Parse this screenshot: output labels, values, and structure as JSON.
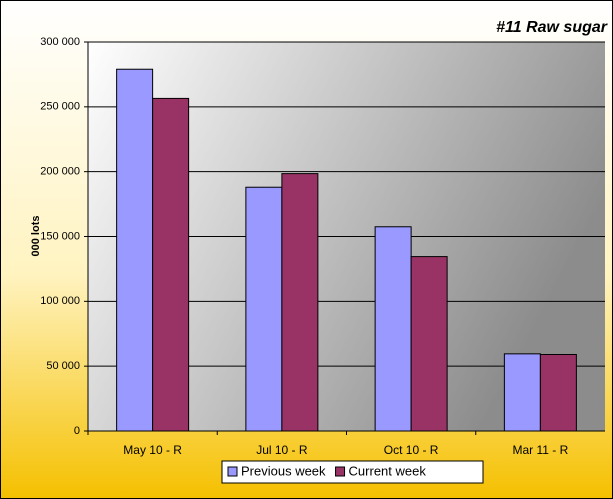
{
  "chart_data": {
    "type": "bar",
    "title": "#11 Raw sugar",
    "y_label": "000 lots",
    "categories": [
      "May 10 - R",
      "Jul 10 - R",
      "Oct 10 - R",
      "Mar 11 - R"
    ],
    "series": [
      {
        "name": "Previous week",
        "color": "#9999ff",
        "values": [
          279000,
          188000,
          157500,
          59500
        ]
      },
      {
        "name": "Current week",
        "color": "#993366",
        "values": [
          256500,
          198500,
          134500,
          59000
        ]
      }
    ],
    "ylim": [
      0,
      300000
    ],
    "yticks": [
      {
        "value": 0,
        "label": "0"
      },
      {
        "value": 50000,
        "label": "50 000"
      },
      {
        "value": 100000,
        "label": "100 000"
      },
      {
        "value": 150000,
        "label": "150 000"
      },
      {
        "value": 200000,
        "label": "200 000"
      },
      {
        "value": 250000,
        "label": "250 000"
      },
      {
        "value": 300000,
        "label": "300 000"
      }
    ],
    "grid": true,
    "legend": "bottom"
  }
}
